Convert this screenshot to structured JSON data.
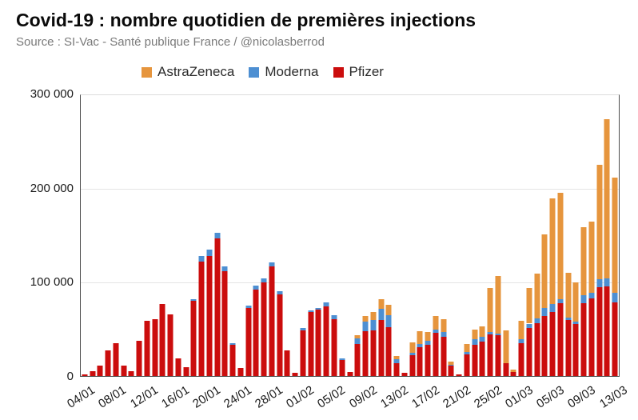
{
  "header": {
    "title": "Covid-19 : nombre quotidien de premières injections",
    "source": "Source : SI-Vac - Santé publique France / @nicolasberrod"
  },
  "chart_data": {
    "type": "bar",
    "subtype": "stacked",
    "title": "Covid-19 : nombre quotidien de premières injections",
    "xlabel": "",
    "ylabel": "",
    "ylim": [
      0,
      300000
    ],
    "grid": true,
    "legend_position": "top-center",
    "y_ticks": [
      {
        "value": 0,
        "label": "0"
      },
      {
        "value": 100000,
        "label": "100 000"
      },
      {
        "value": 200000,
        "label": "200 000"
      },
      {
        "value": 300000,
        "label": "300 000"
      }
    ],
    "x_tick_labels": [
      "04/01",
      "08/01",
      "12/01",
      "16/01",
      "20/01",
      "24/01",
      "28/01",
      "01/02",
      "05/02",
      "09/02",
      "13/02",
      "17/02",
      "21/02",
      "25/02",
      "01/03",
      "05/03",
      "09/03",
      "13/03"
    ],
    "dates": [
      "04/01",
      "05/01",
      "06/01",
      "07/01",
      "08/01",
      "09/01",
      "10/01",
      "11/01",
      "12/01",
      "13/01",
      "14/01",
      "15/01",
      "16/01",
      "17/01",
      "18/01",
      "19/01",
      "20/01",
      "21/01",
      "22/01",
      "23/01",
      "24/01",
      "25/01",
      "26/01",
      "27/01",
      "28/01",
      "29/01",
      "30/01",
      "31/01",
      "01/02",
      "02/02",
      "03/02",
      "04/02",
      "05/02",
      "06/02",
      "07/02",
      "08/02",
      "09/02",
      "10/02",
      "11/02",
      "12/02",
      "13/02",
      "14/02",
      "15/02",
      "16/02",
      "17/02",
      "18/02",
      "19/02",
      "20/02",
      "21/02",
      "22/02",
      "23/02",
      "24/02",
      "25/02",
      "26/02",
      "27/02",
      "28/02",
      "01/03",
      "02/03",
      "03/03",
      "04/03",
      "05/03",
      "06/03",
      "07/03",
      "08/03",
      "09/03",
      "10/03",
      "11/03",
      "12/03",
      "13/03"
    ],
    "stack_bottom_to_top": [
      "Pfizer",
      "Moderna",
      "AstraZeneca"
    ],
    "series": [
      {
        "name": "AstraZeneca",
        "color": "#e6953d",
        "values": [
          0,
          0,
          0,
          0,
          0,
          0,
          0,
          0,
          0,
          0,
          0,
          0,
          0,
          0,
          0,
          0,
          0,
          0,
          0,
          0,
          0,
          0,
          0,
          0,
          0,
          0,
          0,
          0,
          0,
          0,
          0,
          0,
          0,
          0,
          0,
          3400,
          5700,
          8000,
          11000,
          11800,
          4000,
          0,
          10600,
          13800,
          9500,
          14000,
          13500,
          3000,
          0,
          8700,
          10000,
          11000,
          46300,
          61700,
          35000,
          2500,
          19900,
          38400,
          47500,
          78200,
          112700,
          113800,
          47400,
          42100,
          72800,
          76000,
          122000,
          170000,
          123600
        ]
      },
      {
        "name": "Moderna",
        "color": "#4d8fd2",
        "values": [
          0,
          0,
          0,
          0,
          0,
          0,
          0,
          0,
          0,
          0,
          0,
          0,
          0,
          0,
          2000,
          6000,
          7000,
          6000,
          5000,
          1800,
          0,
          2000,
          5000,
          4000,
          4000,
          3500,
          0,
          0,
          2000,
          2000,
          2000,
          5000,
          4000,
          1500,
          0,
          6300,
          10000,
          11000,
          11500,
          12600,
          4300,
          0,
          3000,
          3400,
          4300,
          4000,
          5200,
          1000,
          0,
          2300,
          5700,
          5000,
          2800,
          2300,
          0,
          0,
          4300,
          4300,
          5700,
          8500,
          8500,
          4500,
          2900,
          2800,
          8500,
          6000,
          8500,
          8500,
          9900
        ]
      },
      {
        "name": "Pfizer",
        "color": "#cb0d0d",
        "values": [
          1500,
          5500,
          11000,
          27000,
          35000,
          11000,
          5000,
          38000,
          59000,
          61000,
          77000,
          66000,
          19000,
          9000,
          80000,
          122000,
          128000,
          147000,
          112000,
          33500,
          8300,
          73000,
          92000,
          100000,
          117000,
          87000,
          27000,
          3400,
          49000,
          68000,
          71000,
          74000,
          61000,
          17000,
          4000,
          34000,
          48000,
          49000,
          60000,
          52000,
          13500,
          3400,
          22000,
          31000,
          33500,
          46000,
          42000,
          11400,
          2000,
          23500,
          33500,
          37000,
          44600,
          43200,
          13400,
          4000,
          34700,
          51700,
          56000,
          64500,
          68800,
          77500,
          59700,
          55200,
          77900,
          83000,
          95000,
          95500,
          78800
        ]
      }
    ]
  }
}
